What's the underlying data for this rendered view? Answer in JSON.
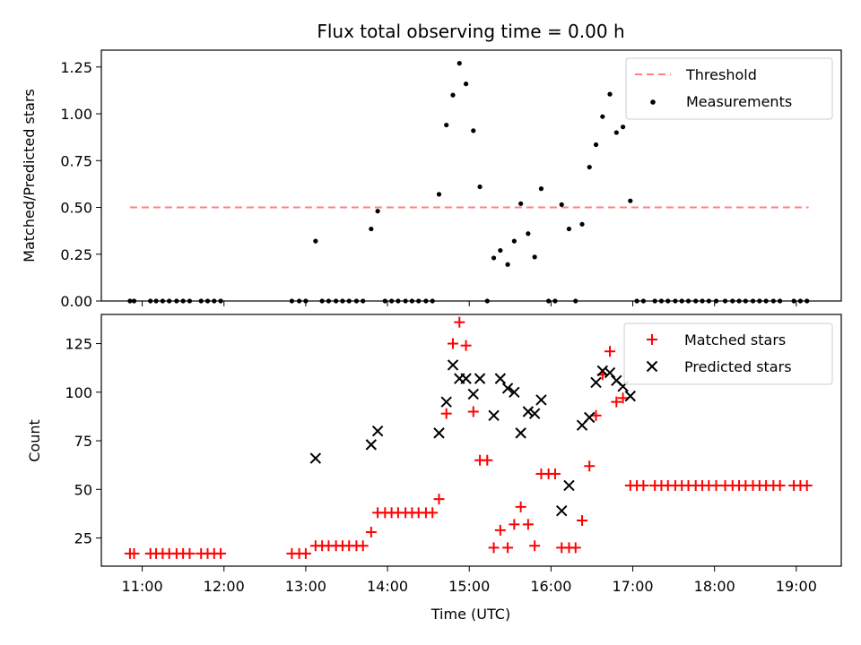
{
  "chart_data": [
    {
      "type": "scatter",
      "title": "Flux total observing time = 0.00 h",
      "xlabel": "",
      "ylabel": "Matched/Predicted stars",
      "x_ticks": [
        "11:00",
        "12:00",
        "13:00",
        "14:00",
        "15:00",
        "16:00",
        "17:00",
        "18:00",
        "19:00"
      ],
      "x_tick_hours": [
        11,
        12,
        13,
        14,
        15,
        16,
        17,
        18,
        19
      ],
      "xlim_hours": [
        10.5,
        19.55
      ],
      "ylim": [
        0,
        1.34
      ],
      "y_ticks": [
        "0.00",
        "0.25",
        "0.50",
        "0.75",
        "1.00",
        "1.25"
      ],
      "y_tick_values": [
        0,
        0.25,
        0.5,
        0.75,
        1.0,
        1.25
      ],
      "legend_position": "top-right",
      "legend": [
        "Threshold",
        "Measurements"
      ],
      "threshold": {
        "name": "Threshold",
        "color": "#ff8080",
        "value": 0.5,
        "x_range_hours": [
          10.85,
          19.15
        ]
      },
      "series": [
        {
          "name": "Measurements",
          "color": "#000000",
          "marker": "dot",
          "points": [
            [
              10.85,
              0
            ],
            [
              10.9,
              0
            ],
            [
              11.1,
              0
            ],
            [
              11.17,
              0
            ],
            [
              11.25,
              0
            ],
            [
              11.33,
              0
            ],
            [
              11.42,
              0
            ],
            [
              11.5,
              0
            ],
            [
              11.58,
              0
            ],
            [
              11.72,
              0
            ],
            [
              11.8,
              0
            ],
            [
              11.88,
              0
            ],
            [
              11.96,
              0
            ],
            [
              12.83,
              0
            ],
            [
              12.92,
              0
            ],
            [
              13.0,
              0
            ],
            [
              13.12,
              0.32
            ],
            [
              13.2,
              0
            ],
            [
              13.28,
              0
            ],
            [
              13.37,
              0
            ],
            [
              13.45,
              0
            ],
            [
              13.53,
              0
            ],
            [
              13.62,
              0
            ],
            [
              13.7,
              0
            ],
            [
              13.8,
              0.385
            ],
            [
              13.88,
              0.48
            ],
            [
              13.97,
              0
            ],
            [
              14.05,
              0
            ],
            [
              14.13,
              0
            ],
            [
              14.22,
              0
            ],
            [
              14.3,
              0
            ],
            [
              14.38,
              0
            ],
            [
              14.47,
              0
            ],
            [
              14.55,
              0
            ],
            [
              14.63,
              0.57
            ],
            [
              14.72,
              0.94
            ],
            [
              14.8,
              1.1
            ],
            [
              14.88,
              1.27
            ],
            [
              14.96,
              1.16
            ],
            [
              15.05,
              0.91
            ],
            [
              15.13,
              0.61
            ],
            [
              15.22,
              0
            ],
            [
              15.3,
              0.23
            ],
            [
              15.38,
              0.27
            ],
            [
              15.47,
              0.195
            ],
            [
              15.55,
              0.32
            ],
            [
              15.63,
              0.52
            ],
            [
              15.72,
              0.36
            ],
            [
              15.8,
              0.235
            ],
            [
              15.88,
              0.6
            ],
            [
              15.97,
              0
            ],
            [
              16.05,
              0
            ],
            [
              16.13,
              0.515
            ],
            [
              16.22,
              0.385
            ],
            [
              16.3,
              0
            ],
            [
              16.38,
              0.41
            ],
            [
              16.47,
              0.715
            ],
            [
              16.55,
              0.835
            ],
            [
              16.63,
              0.985
            ],
            [
              16.72,
              1.105
            ],
            [
              16.8,
              0.9
            ],
            [
              16.88,
              0.93
            ],
            [
              16.97,
              0.535
            ],
            [
              17.05,
              0
            ],
            [
              17.13,
              0
            ],
            [
              17.27,
              0
            ],
            [
              17.35,
              0
            ],
            [
              17.43,
              0
            ],
            [
              17.52,
              0
            ],
            [
              17.6,
              0
            ],
            [
              17.68,
              0
            ],
            [
              17.77,
              0
            ],
            [
              17.85,
              0
            ],
            [
              17.93,
              0
            ],
            [
              18.02,
              0
            ],
            [
              18.13,
              0
            ],
            [
              18.22,
              0
            ],
            [
              18.3,
              0
            ],
            [
              18.38,
              0
            ],
            [
              18.47,
              0
            ],
            [
              18.55,
              0
            ],
            [
              18.63,
              0
            ],
            [
              18.72,
              0
            ],
            [
              18.8,
              0
            ],
            [
              18.97,
              0
            ],
            [
              19.05,
              0
            ],
            [
              19.13,
              0
            ]
          ]
        }
      ]
    },
    {
      "type": "scatter",
      "title": "",
      "xlabel": "Time (UTC)",
      "ylabel": "Count",
      "x_ticks": [
        "11:00",
        "12:00",
        "13:00",
        "14:00",
        "15:00",
        "16:00",
        "17:00",
        "18:00",
        "19:00"
      ],
      "x_tick_hours": [
        11,
        12,
        13,
        14,
        15,
        16,
        17,
        18,
        19
      ],
      "xlim_hours": [
        10.5,
        19.55
      ],
      "ylim": [
        10.5,
        140
      ],
      "y_ticks": [
        "25",
        "50",
        "75",
        "100",
        "125"
      ],
      "y_tick_values": [
        25,
        50,
        75,
        100,
        125
      ],
      "legend_position": "top-right",
      "legend": [
        "Matched stars",
        "Predicted stars"
      ],
      "series": [
        {
          "name": "Matched stars",
          "color": "#ff0000",
          "marker": "plus",
          "points": [
            [
              10.85,
              17
            ],
            [
              10.9,
              17
            ],
            [
              11.1,
              17
            ],
            [
              11.17,
              17
            ],
            [
              11.25,
              17
            ],
            [
              11.33,
              17
            ],
            [
              11.42,
              17
            ],
            [
              11.5,
              17
            ],
            [
              11.58,
              17
            ],
            [
              11.72,
              17
            ],
            [
              11.8,
              17
            ],
            [
              11.88,
              17
            ],
            [
              11.96,
              17
            ],
            [
              12.83,
              17
            ],
            [
              12.92,
              17
            ],
            [
              13.0,
              17
            ],
            [
              13.12,
              21
            ],
            [
              13.2,
              21
            ],
            [
              13.28,
              21
            ],
            [
              13.37,
              21
            ],
            [
              13.45,
              21
            ],
            [
              13.53,
              21
            ],
            [
              13.62,
              21
            ],
            [
              13.7,
              21
            ],
            [
              13.8,
              28
            ],
            [
              13.88,
              38
            ],
            [
              13.97,
              38
            ],
            [
              14.05,
              38
            ],
            [
              14.13,
              38
            ],
            [
              14.22,
              38
            ],
            [
              14.3,
              38
            ],
            [
              14.38,
              38
            ],
            [
              14.47,
              38
            ],
            [
              14.55,
              38
            ],
            [
              14.63,
              45
            ],
            [
              14.72,
              89
            ],
            [
              14.8,
              125
            ],
            [
              14.88,
              136
            ],
            [
              14.96,
              124
            ],
            [
              15.05,
              90
            ],
            [
              15.13,
              65
            ],
            [
              15.22,
              65
            ],
            [
              15.3,
              20
            ],
            [
              15.38,
              29
            ],
            [
              15.47,
              20
            ],
            [
              15.55,
              32
            ],
            [
              15.63,
              41
            ],
            [
              15.72,
              32
            ],
            [
              15.8,
              21
            ],
            [
              15.88,
              58
            ],
            [
              15.97,
              58
            ],
            [
              16.05,
              58
            ],
            [
              16.13,
              20
            ],
            [
              16.22,
              20
            ],
            [
              16.3,
              20
            ],
            [
              16.38,
              34
            ],
            [
              16.47,
              62
            ],
            [
              16.55,
              88
            ],
            [
              16.63,
              109
            ],
            [
              16.72,
              121
            ],
            [
              16.8,
              95
            ],
            [
              16.88,
              97
            ],
            [
              16.97,
              52
            ],
            [
              17.05,
              52
            ],
            [
              17.13,
              52
            ],
            [
              17.27,
              52
            ],
            [
              17.35,
              52
            ],
            [
              17.43,
              52
            ],
            [
              17.52,
              52
            ],
            [
              17.6,
              52
            ],
            [
              17.68,
              52
            ],
            [
              17.77,
              52
            ],
            [
              17.85,
              52
            ],
            [
              17.93,
              52
            ],
            [
              18.02,
              52
            ],
            [
              18.13,
              52
            ],
            [
              18.22,
              52
            ],
            [
              18.3,
              52
            ],
            [
              18.38,
              52
            ],
            [
              18.47,
              52
            ],
            [
              18.55,
              52
            ],
            [
              18.63,
              52
            ],
            [
              18.72,
              52
            ],
            [
              18.8,
              52
            ],
            [
              18.97,
              52
            ],
            [
              19.05,
              52
            ],
            [
              19.13,
              52
            ]
          ]
        },
        {
          "name": "Predicted stars",
          "color": "#000000",
          "marker": "x",
          "points": [
            [
              13.12,
              66
            ],
            [
              13.8,
              73
            ],
            [
              13.88,
              80
            ],
            [
              14.63,
              79
            ],
            [
              14.72,
              95
            ],
            [
              14.8,
              114
            ],
            [
              14.88,
              107
            ],
            [
              14.96,
              107
            ],
            [
              15.05,
              99
            ],
            [
              15.13,
              107
            ],
            [
              15.3,
              88
            ],
            [
              15.38,
              107
            ],
            [
              15.47,
              102
            ],
            [
              15.55,
              100
            ],
            [
              15.63,
              79
            ],
            [
              15.72,
              90
            ],
            [
              15.8,
              89
            ],
            [
              15.88,
              96
            ],
            [
              16.13,
              39
            ],
            [
              16.22,
              52
            ],
            [
              16.38,
              83
            ],
            [
              16.47,
              87
            ],
            [
              16.55,
              105
            ],
            [
              16.63,
              111
            ],
            [
              16.72,
              110
            ],
            [
              16.8,
              106
            ],
            [
              16.88,
              103
            ],
            [
              16.97,
              98
            ]
          ]
        }
      ]
    }
  ]
}
